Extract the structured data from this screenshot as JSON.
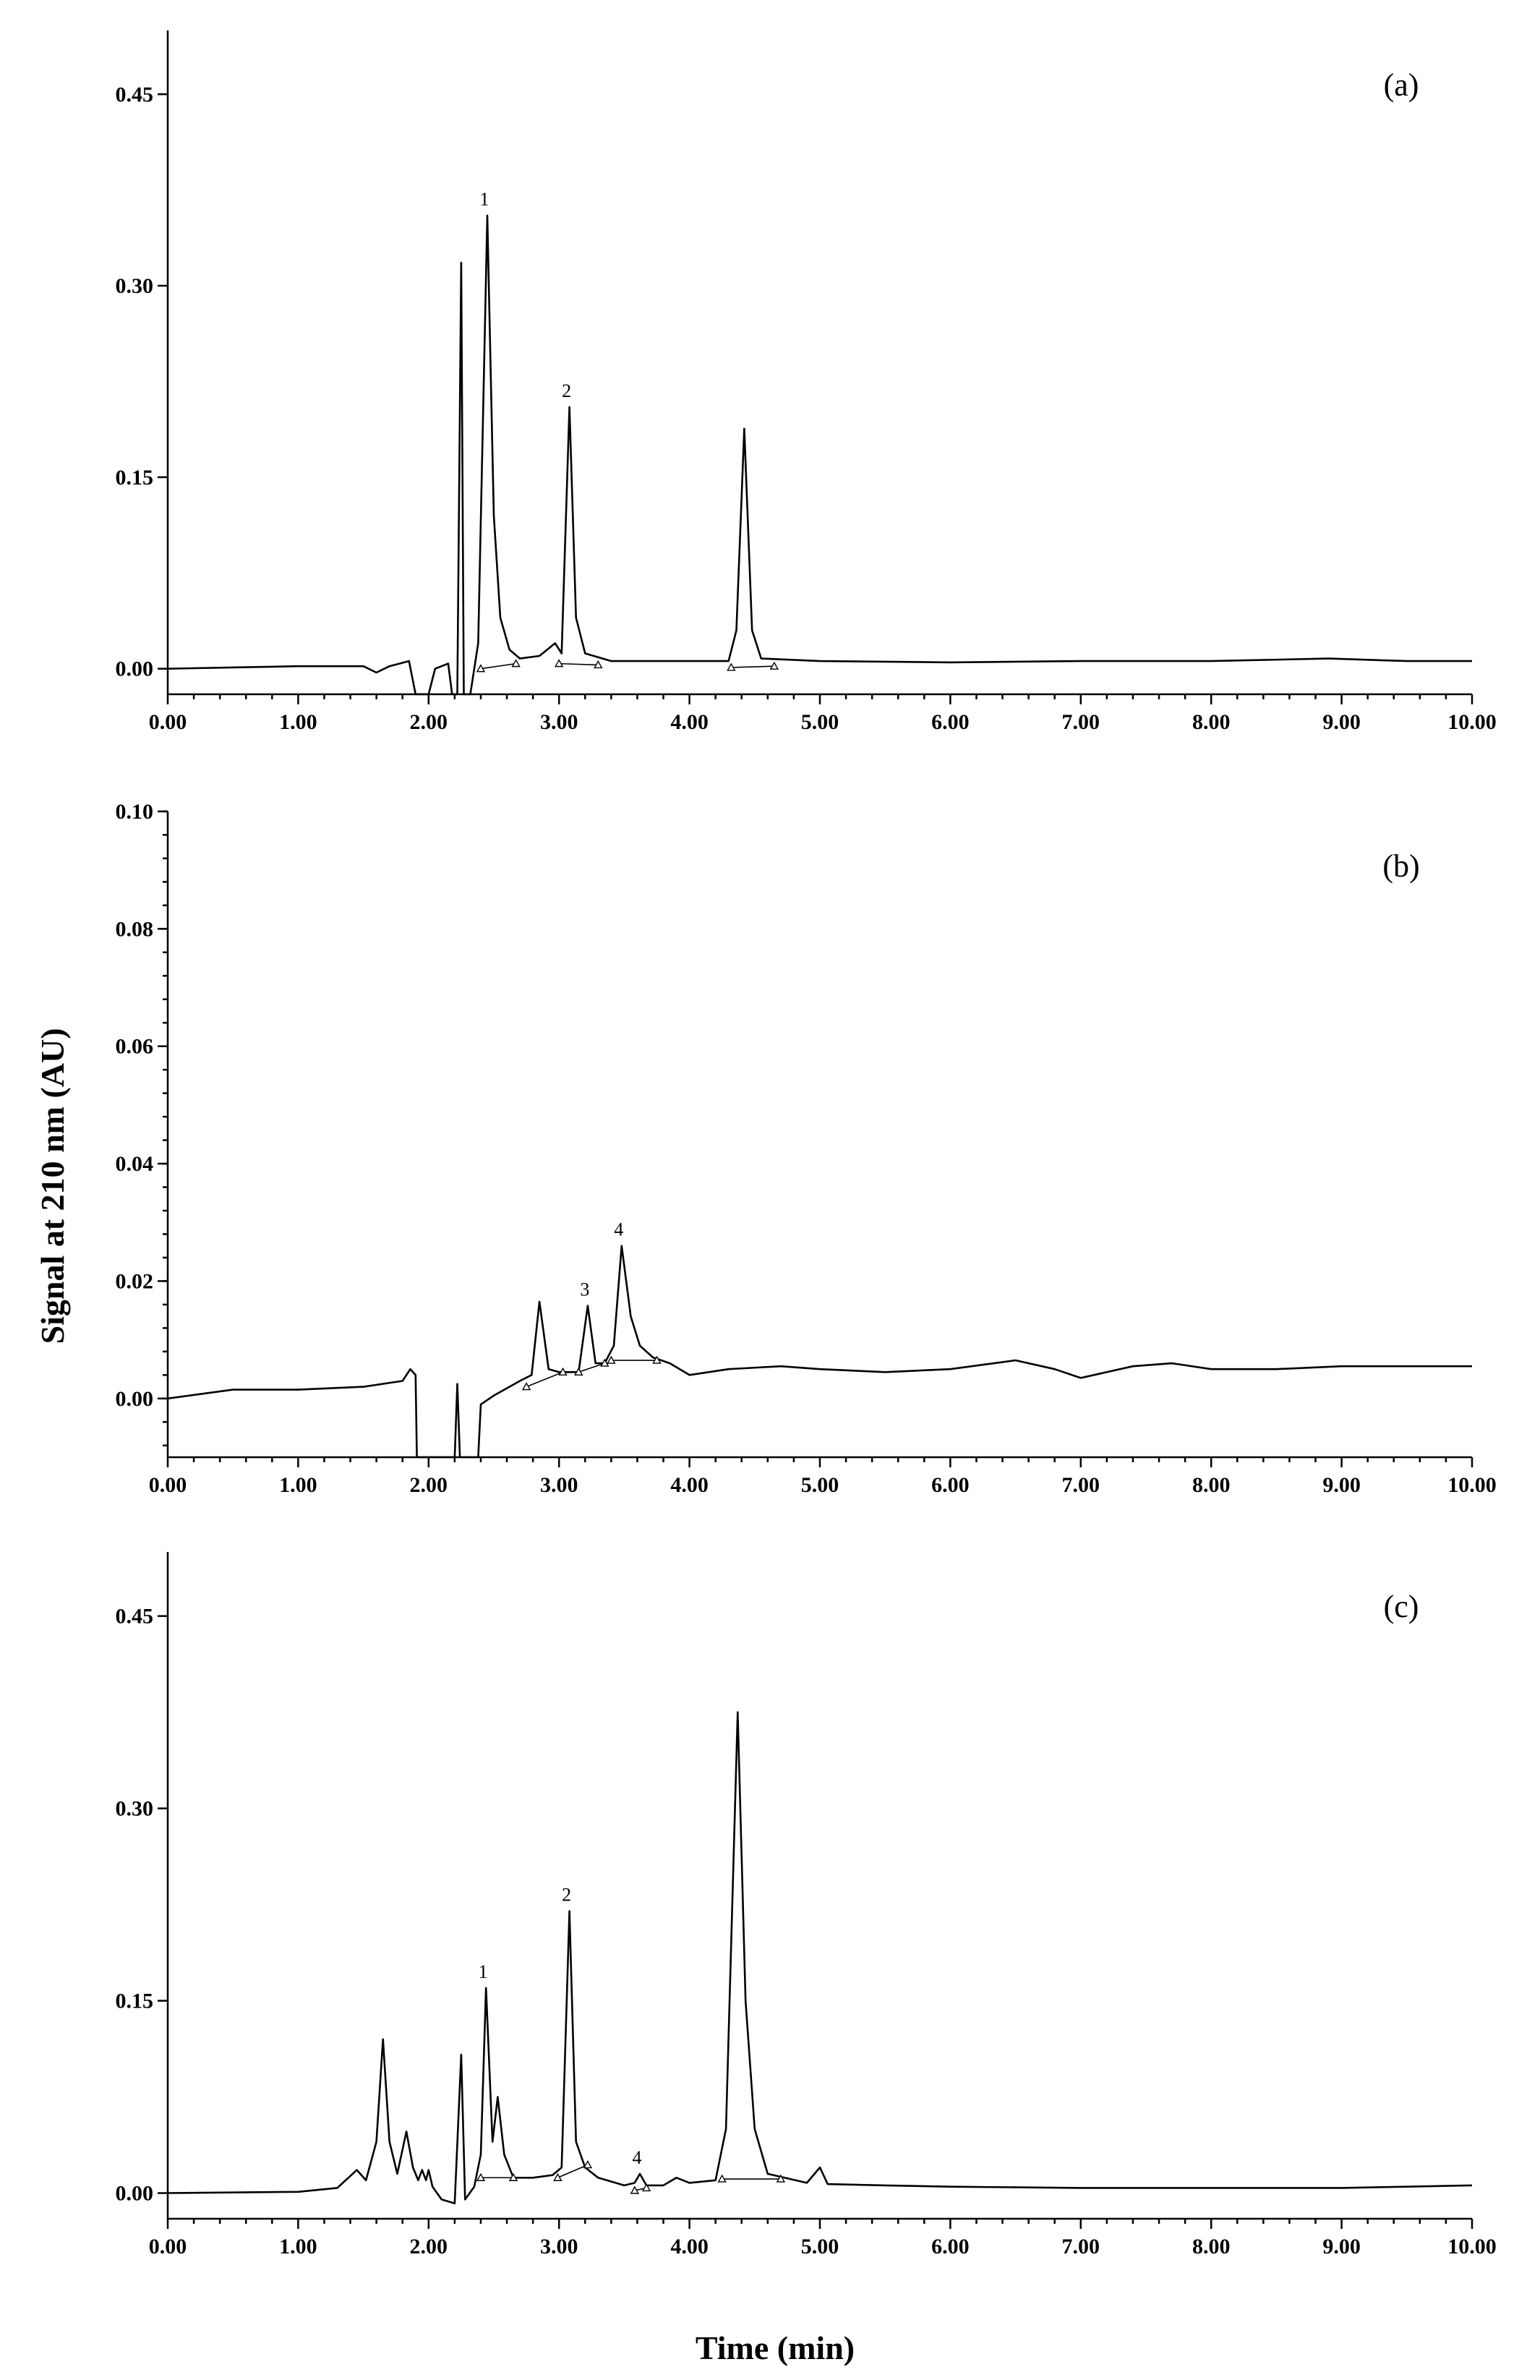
{
  "y_axis_label": "Signal at 210 nm (AU)",
  "x_axis_label": "Time (min)",
  "chart_data": [
    {
      "type": "line",
      "panel_label": "(a)",
      "xlim": [
        0,
        10
      ],
      "ylim": [
        -0.02,
        0.5
      ],
      "x_ticks": [
        "0.00",
        "1.00",
        "2.00",
        "3.00",
        "4.00",
        "5.00",
        "6.00",
        "7.00",
        "8.00",
        "9.00",
        "10.00"
      ],
      "y_ticks": [
        {
          "value": 0.0,
          "label": "0.00"
        },
        {
          "value": 0.15,
          "label": "0.15"
        },
        {
          "value": 0.3,
          "label": "0.30"
        },
        {
          "value": 0.45,
          "label": "0.45"
        }
      ],
      "peaks": [
        {
          "label": "1",
          "time": 2.45,
          "height": 0.355
        },
        {
          "label": "2",
          "time": 3.08,
          "height": 0.205
        },
        {
          "label": "",
          "time": 4.42,
          "height": 0.188
        }
      ],
      "points": [
        [
          0,
          0.0
        ],
        [
          0.5,
          0.001
        ],
        [
          1.0,
          0.002
        ],
        [
          1.5,
          0.002
        ],
        [
          1.6,
          -0.003
        ],
        [
          1.7,
          0.002
        ],
        [
          1.85,
          0.006
        ],
        [
          1.9,
          -0.02
        ],
        [
          2.0,
          -0.02
        ],
        [
          2.05,
          0.0
        ],
        [
          2.15,
          0.004
        ],
        [
          2.18,
          -0.02
        ],
        [
          2.22,
          -0.02
        ],
        [
          2.25,
          0.318
        ],
        [
          2.27,
          -0.02
        ],
        [
          2.32,
          -0.02
        ],
        [
          2.38,
          0.02
        ],
        [
          2.45,
          0.355
        ],
        [
          2.5,
          0.12
        ],
        [
          2.55,
          0.04
        ],
        [
          2.62,
          0.015
        ],
        [
          2.7,
          0.008
        ],
        [
          2.85,
          0.01
        ],
        [
          2.97,
          0.02
        ],
        [
          3.02,
          0.012
        ],
        [
          3.08,
          0.205
        ],
        [
          3.13,
          0.04
        ],
        [
          3.2,
          0.012
        ],
        [
          3.4,
          0.006
        ],
        [
          4.3,
          0.006
        ],
        [
          4.36,
          0.03
        ],
        [
          4.42,
          0.188
        ],
        [
          4.48,
          0.03
        ],
        [
          4.55,
          0.008
        ],
        [
          5.0,
          0.006
        ],
        [
          6.0,
          0.005
        ],
        [
          7.0,
          0.006
        ],
        [
          8.0,
          0.006
        ],
        [
          8.9,
          0.008
        ],
        [
          9.5,
          0.006
        ],
        [
          10.0,
          0.006
        ]
      ],
      "integration_baselines": [
        [
          [
            2.4,
            0.0
          ],
          [
            2.67,
            0.004
          ]
        ],
        [
          [
            3.0,
            0.004
          ],
          [
            3.3,
            0.003
          ]
        ],
        [
          [
            4.32,
            0.001
          ],
          [
            4.65,
            0.002
          ]
        ]
      ]
    },
    {
      "type": "line",
      "panel_label": "(b)",
      "xlim": [
        0,
        10
      ],
      "ylim": [
        -0.01,
        0.1
      ],
      "x_ticks": [
        "0.00",
        "1.00",
        "2.00",
        "3.00",
        "4.00",
        "5.00",
        "6.00",
        "7.00",
        "8.00",
        "9.00",
        "10.00"
      ],
      "y_ticks": [
        {
          "value": 0.0,
          "label": "0.00"
        },
        {
          "value": 0.02,
          "label": "0.02"
        },
        {
          "value": 0.04,
          "label": "0.04"
        },
        {
          "value": 0.06,
          "label": "0.06"
        },
        {
          "value": 0.08,
          "label": "0.08"
        },
        {
          "value": 0.1,
          "label": "0.10"
        }
      ],
      "peaks": [
        {
          "label": "",
          "time": 2.85,
          "height": 0.0165
        },
        {
          "label": "3",
          "time": 3.22,
          "height": 0.0158
        },
        {
          "label": "4",
          "time": 3.48,
          "height": 0.026
        }
      ],
      "points": [
        [
          0,
          0.0
        ],
        [
          0.5,
          0.0015
        ],
        [
          1.0,
          0.0015
        ],
        [
          1.5,
          0.002
        ],
        [
          1.8,
          0.003
        ],
        [
          1.86,
          0.005
        ],
        [
          1.9,
          0.004
        ],
        [
          1.91,
          -0.01
        ],
        [
          2.2,
          -0.01
        ],
        [
          2.22,
          0.0025
        ],
        [
          2.24,
          -0.01
        ],
        [
          2.38,
          -0.01
        ],
        [
          2.4,
          -0.001
        ],
        [
          2.5,
          0.0005
        ],
        [
          2.7,
          0.003
        ],
        [
          2.79,
          0.004
        ],
        [
          2.85,
          0.0165
        ],
        [
          2.92,
          0.005
        ],
        [
          3.0,
          0.0045
        ],
        [
          3.15,
          0.0045
        ],
        [
          3.22,
          0.0158
        ],
        [
          3.28,
          0.006
        ],
        [
          3.35,
          0.006
        ],
        [
          3.42,
          0.009
        ],
        [
          3.48,
          0.026
        ],
        [
          3.55,
          0.014
        ],
        [
          3.62,
          0.009
        ],
        [
          3.72,
          0.007
        ],
        [
          3.85,
          0.006
        ],
        [
          4.0,
          0.004
        ],
        [
          4.3,
          0.005
        ],
        [
          4.7,
          0.0055
        ],
        [
          5.0,
          0.005
        ],
        [
          5.5,
          0.0045
        ],
        [
          6.0,
          0.005
        ],
        [
          6.5,
          0.0065
        ],
        [
          6.8,
          0.005
        ],
        [
          7.0,
          0.0035
        ],
        [
          7.4,
          0.0055
        ],
        [
          7.7,
          0.006
        ],
        [
          8.0,
          0.005
        ],
        [
          8.5,
          0.005
        ],
        [
          9.0,
          0.0055
        ],
        [
          9.5,
          0.0055
        ],
        [
          10.0,
          0.0055
        ]
      ],
      "integration_baselines": [
        [
          [
            2.75,
            0.002
          ],
          [
            3.03,
            0.0045
          ]
        ],
        [
          [
            3.15,
            0.0045
          ],
          [
            3.35,
            0.006
          ]
        ],
        [
          [
            3.4,
            0.0065
          ],
          [
            3.75,
            0.0065
          ]
        ]
      ]
    },
    {
      "type": "line",
      "panel_label": "(c)",
      "xlim": [
        0,
        10
      ],
      "ylim": [
        -0.02,
        0.5
      ],
      "x_ticks": [
        "0.00",
        "1.00",
        "2.00",
        "3.00",
        "4.00",
        "5.00",
        "6.00",
        "7.00",
        "8.00",
        "9.00",
        "10.00"
      ],
      "y_ticks": [
        {
          "value": 0.0,
          "label": "0.00"
        },
        {
          "value": 0.15,
          "label": "0.15"
        },
        {
          "value": 0.3,
          "label": "0.30"
        },
        {
          "value": 0.45,
          "label": "0.45"
        }
      ],
      "peaks": [
        {
          "label": "",
          "time": 1.65,
          "height": 0.12
        },
        {
          "label": "1",
          "time": 2.44,
          "height": 0.16
        },
        {
          "label": "2",
          "time": 3.08,
          "height": 0.22
        },
        {
          "label": "4",
          "time": 3.62,
          "height": 0.015
        },
        {
          "label": "",
          "time": 4.37,
          "height": 0.375
        }
      ],
      "points": [
        [
          0,
          0.0
        ],
        [
          1.0,
          0.001
        ],
        [
          1.3,
          0.004
        ],
        [
          1.45,
          0.018
        ],
        [
          1.52,
          0.01
        ],
        [
          1.6,
          0.04
        ],
        [
          1.65,
          0.12
        ],
        [
          1.7,
          0.04
        ],
        [
          1.76,
          0.015
        ],
        [
          1.83,
          0.048
        ],
        [
          1.88,
          0.02
        ],
        [
          1.92,
          0.01
        ],
        [
          1.95,
          0.018
        ],
        [
          1.98,
          0.01
        ],
        [
          2.0,
          0.018
        ],
        [
          2.03,
          0.005
        ],
        [
          2.1,
          -0.005
        ],
        [
          2.2,
          -0.008
        ],
        [
          2.25,
          0.108
        ],
        [
          2.28,
          -0.005
        ],
        [
          2.35,
          0.005
        ],
        [
          2.4,
          0.03
        ],
        [
          2.44,
          0.16
        ],
        [
          2.49,
          0.04
        ],
        [
          2.53,
          0.075
        ],
        [
          2.58,
          0.03
        ],
        [
          2.65,
          0.012
        ],
        [
          2.8,
          0.012
        ],
        [
          2.95,
          0.014
        ],
        [
          3.02,
          0.02
        ],
        [
          3.08,
          0.22
        ],
        [
          3.13,
          0.04
        ],
        [
          3.2,
          0.02
        ],
        [
          3.3,
          0.012
        ],
        [
          3.5,
          0.006
        ],
        [
          3.58,
          0.008
        ],
        [
          3.62,
          0.015
        ],
        [
          3.67,
          0.006
        ],
        [
          3.8,
          0.006
        ],
        [
          3.9,
          0.012
        ],
        [
          4.0,
          0.008
        ],
        [
          4.2,
          0.01
        ],
        [
          4.28,
          0.05
        ],
        [
          4.37,
          0.375
        ],
        [
          4.43,
          0.15
        ],
        [
          4.5,
          0.05
        ],
        [
          4.6,
          0.015
        ],
        [
          4.9,
          0.008
        ],
        [
          5.0,
          0.02
        ],
        [
          5.06,
          0.007
        ],
        [
          5.5,
          0.006
        ],
        [
          6.0,
          0.005
        ],
        [
          7.0,
          0.004
        ],
        [
          8.0,
          0.004
        ],
        [
          9.0,
          0.004
        ],
        [
          9.5,
          0.005
        ],
        [
          10.0,
          0.006
        ]
      ],
      "integration_baselines": [
        [
          [
            2.4,
            0.012
          ],
          [
            2.65,
            0.012
          ]
        ],
        [
          [
            2.99,
            0.012
          ],
          [
            3.22,
            0.022
          ]
        ],
        [
          [
            3.58,
            0.002
          ],
          [
            3.67,
            0.004
          ]
        ],
        [
          [
            4.25,
            0.011
          ],
          [
            4.7,
            0.011
          ]
        ]
      ]
    }
  ]
}
